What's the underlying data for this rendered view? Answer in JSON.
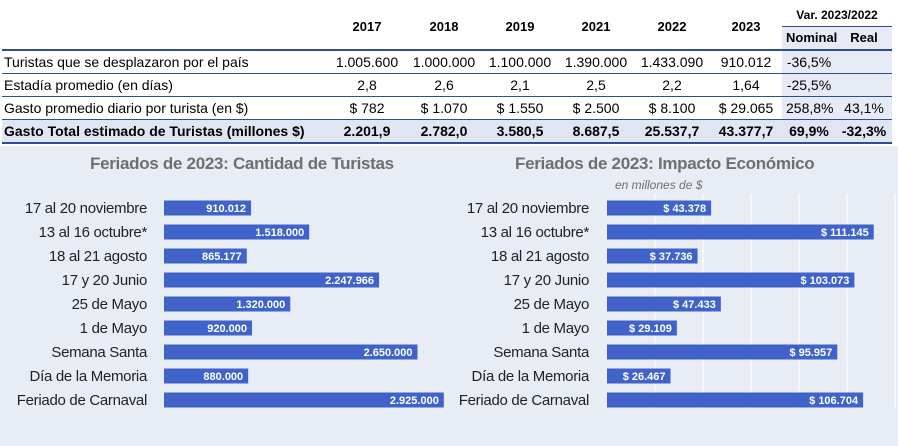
{
  "table": {
    "years": [
      "2017",
      "2018",
      "2019",
      "2021",
      "2022",
      "2023"
    ],
    "var_header": "Var. 2023/2022",
    "var_sub": [
      "Nominal",
      "Real"
    ],
    "rows": [
      {
        "label": "Turistas que se desplazaron por el país",
        "values": [
          "1.005.600",
          "1.000.000",
          "1.100.000",
          "1.390.000",
          "1.433.090",
          "910.012"
        ],
        "nominal": "-36,5%",
        "real": ""
      },
      {
        "label": "Estadía promedio (en días)",
        "values": [
          "2,8",
          "2,6",
          "2,1",
          "2,5",
          "2,2",
          "1,64"
        ],
        "nominal": "-25,5%",
        "real": ""
      },
      {
        "label": "Gasto promedio diario por turista (en $)",
        "values": [
          "$ 782",
          "$ 1.070",
          "$ 1.550",
          "$ 2.500",
          "$ 8.100",
          "$ 29.065"
        ],
        "nominal": "258,8%",
        "real": "43,1%"
      },
      {
        "label": "Gasto Total estimado de Turistas (millones $)",
        "values": [
          "2.201,9",
          "2.782,0",
          "3.580,5",
          "8.687,5",
          "25.537,7",
          "43.377,7"
        ],
        "nominal": "69,9%",
        "real": "-32,3%"
      }
    ]
  },
  "colors": {
    "bar": "#3f63c9",
    "bg": "#e8ecf5",
    "accent": "#2f4d8f"
  },
  "chart_data": [
    {
      "type": "bar",
      "orientation": "horizontal",
      "title": "Feriados de 2023: Cantidad de Turistas",
      "categories": [
        "17 al 20 noviembre",
        "13 al 16 octubre*",
        "18 al 21 agosto",
        "17 y 20 Junio",
        "25 de Mayo",
        "1 de Mayo",
        "Semana Santa",
        "Día de la Memoria",
        "Feriado de Carnaval"
      ],
      "values": [
        910012,
        1518000,
        865177,
        2247966,
        1320000,
        920000,
        2650000,
        880000,
        2925000
      ],
      "labels": [
        "910.012",
        "1.518.000",
        "865.177",
        "2.247.966",
        "1.320.000",
        "920.000",
        "2.650.000",
        "880.000",
        "2.925.000"
      ],
      "xlim": [
        0,
        3000000
      ]
    },
    {
      "type": "bar",
      "orientation": "horizontal",
      "title": "Feriados de 2023: Impacto Económico",
      "subtitle": "en millones de $",
      "categories": [
        "17 al 20 noviembre",
        "13 al 16 octubre*",
        "18 al 21 agosto",
        "17 y 20 Junio",
        "25 de Mayo",
        "1 de Mayo",
        "Semana Santa",
        "Día de la Memoria",
        "Feriado de Carnaval"
      ],
      "values": [
        43378,
        111145,
        37736,
        103073,
        47433,
        29109,
        95957,
        26467,
        106704
      ],
      "labels": [
        "$ 43.378",
        "$ 111.145",
        "$ 37.736",
        "$ 103.073",
        "$ 47.433",
        "$ 29.109",
        "$ 95.957",
        "$ 26.467",
        "$ 106.704"
      ],
      "xlim": [
        0,
        120000
      ]
    }
  ]
}
